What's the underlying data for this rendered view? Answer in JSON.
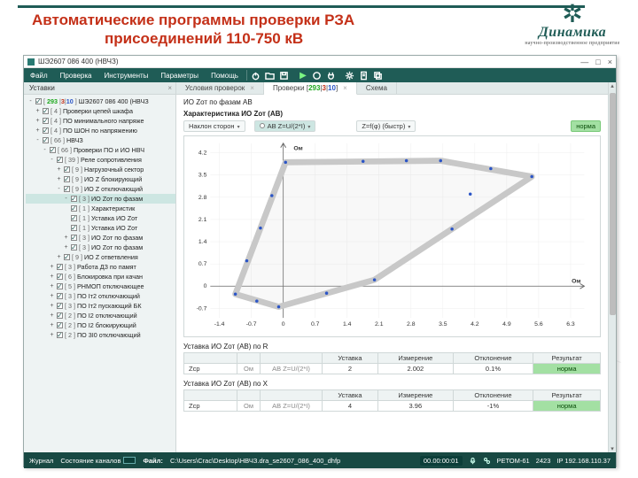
{
  "slide": {
    "title_line1": "Автоматические программы проверки РЗА",
    "title_line2": "присоединений 110-750 кВ",
    "logo_name": "Динамика",
    "logo_sub": "научно-производственное предприятие"
  },
  "window": {
    "title": "ШЭ2607 086 400 (НВЧЗ)",
    "min": "—",
    "max": "□",
    "close": "×",
    "menu": [
      "Файл",
      "Проверка",
      "Инструменты",
      "Параметры",
      "Помощь"
    ],
    "icons": [
      "power",
      "folder",
      "save",
      "play",
      "stop",
      "unplug",
      "gear",
      "report",
      "stack"
    ]
  },
  "sidebar_tab": "Уставки",
  "tree": [
    {
      "lvl": 1,
      "tw": "-",
      "cnt": "[ 293 | 3 | 10 ]",
      "label": "ШЭ2607 086 400 (НВЧЗ"
    },
    {
      "lvl": 2,
      "tw": "+",
      "cnt": "[ 4 ]",
      "label": "Проверки цепей шкафа"
    },
    {
      "lvl": 2,
      "tw": "+",
      "cnt": "[ 4 ]",
      "label": "ПО минимального напряже"
    },
    {
      "lvl": 2,
      "tw": "+",
      "cnt": "[ 4 ]",
      "label": "ПО ШОН по напряжению"
    },
    {
      "lvl": 2,
      "tw": "-",
      "cnt": "[ 66 ]",
      "label": "НВЧЗ"
    },
    {
      "lvl": 3,
      "tw": "-",
      "cnt": "[ 66 ]",
      "label": "Проверки ПО и ИО НВЧ"
    },
    {
      "lvl": 4,
      "tw": "-",
      "cnt": "[ 39 ]",
      "label": "Реле сопротивления"
    },
    {
      "lvl": 5,
      "tw": "+",
      "cnt": "[ 9 ]",
      "label": "Нагрузочный сектор"
    },
    {
      "lvl": 5,
      "tw": "+",
      "cnt": "[ 9 ]",
      "label": "ИО Z блокирующий"
    },
    {
      "lvl": 5,
      "tw": "-",
      "cnt": "[ 9 ]",
      "label": "ИО Z отключающий"
    },
    {
      "lvl": 6,
      "tw": "-",
      "cnt": "[ 3 ]",
      "label": "ИО Zот по фазам",
      "sel": true
    },
    {
      "lvl": 6,
      "tw": "",
      "cnt": "[ 1 ]",
      "label": "Характеристик"
    },
    {
      "lvl": 6,
      "tw": "",
      "cnt": "[ 1 ]",
      "label": "Уставка ИО Zот"
    },
    {
      "lvl": 6,
      "tw": "",
      "cnt": "[ 1 ]",
      "label": "Уставка ИО Zот"
    },
    {
      "lvl": 6,
      "tw": "+",
      "cnt": "[ 3 ]",
      "label": "ИО Zот по фазам"
    },
    {
      "lvl": 6,
      "tw": "+",
      "cnt": "[ 3 ]",
      "label": "ИО Zот по фазам"
    },
    {
      "lvl": 5,
      "tw": "+",
      "cnt": "[ 9 ]",
      "label": "ИО Z ответвления"
    },
    {
      "lvl": 4,
      "tw": "+",
      "cnt": "[ 3 ]",
      "label": "Работа ДЗ по памят"
    },
    {
      "lvl": 4,
      "tw": "+",
      "cnt": "[ 6 ]",
      "label": "Блокировка при качан"
    },
    {
      "lvl": 4,
      "tw": "+",
      "cnt": "[ 5 ]",
      "label": "РНМОП отключающее"
    },
    {
      "lvl": 4,
      "tw": "+",
      "cnt": "[ 3 ]",
      "label": "ПО Iт2 отключающий"
    },
    {
      "lvl": 4,
      "tw": "+",
      "cnt": "[ 3 ]",
      "label": "ПО Iт2 пускающий БК"
    },
    {
      "lvl": 4,
      "tw": "+",
      "cnt": "[ 2 ]",
      "label": "ПО I2 отключающий"
    },
    {
      "lvl": 4,
      "tw": "+",
      "cnt": "[ 2 ]",
      "label": "ПО I2 блокирующий"
    },
    {
      "lvl": 4,
      "tw": "+",
      "cnt": "[ 2 ]",
      "label": "ПО 3I0 отключающий"
    }
  ],
  "main_tabs": [
    {
      "label": "Условия проверок",
      "close": true
    },
    {
      "label": "Проверки [ 293 | 3 | 10 ]",
      "active": true,
      "close": true
    },
    {
      "label": "Схема"
    }
  ],
  "check_title": "ИО Zот по фазам АВ",
  "char_title": "Характеристика ИО Zот (АВ)",
  "option_pills": {
    "p1": "Наклон сторон",
    "p2": "АВ Z=U/(2*I)",
    "p3": "Z=f(φ) (быстр)",
    "norm": "норма"
  },
  "chart": {
    "x_unit": "Ом",
    "y_unit": "Ом",
    "x_ticks": [
      -1.4,
      -0.7,
      0,
      0.7,
      1.4,
      2.1,
      2.8,
      3.5,
      4.2,
      4.9,
      5.6,
      6.3
    ],
    "y_ticks": [
      -0.7,
      0,
      0.7,
      1.4,
      2.1,
      2.8,
      3.5,
      4.2
    ],
    "x_range": [
      -1.6,
      6.6
    ],
    "y_range": [
      -1.0,
      4.5
    ],
    "char_poly": [
      [
        -1.05,
        -0.25
      ],
      [
        -0.1,
        -0.65
      ],
      [
        2.0,
        0.2
      ],
      [
        5.45,
        3.45
      ],
      [
        3.45,
        3.95
      ],
      [
        0.05,
        3.9
      ],
      [
        -1.05,
        -0.25
      ]
    ],
    "char_stroke_width": 7,
    "points": [
      [
        -1.05,
        -0.25
      ],
      [
        -0.1,
        -0.65
      ],
      [
        2.0,
        0.2
      ],
      [
        5.45,
        3.45
      ],
      [
        3.45,
        3.95
      ],
      [
        0.05,
        3.9
      ],
      [
        -0.58,
        -0.47
      ],
      [
        0.95,
        -0.22
      ],
      [
        3.7,
        1.8
      ],
      [
        4.55,
        3.7
      ],
      [
        1.75,
        3.93
      ],
      [
        -0.5,
        1.83
      ],
      [
        -0.8,
        0.8
      ],
      [
        -0.25,
        2.85
      ],
      [
        4.1,
        2.9
      ],
      [
        2.7,
        3.95
      ]
    ],
    "point_color": "#2b55c6",
    "grid_color": "#eeeeee",
    "axis_color": "#666666",
    "bg": "#ffffff",
    "char_color": "#c8c8c8",
    "char_fill": "rgba(200,200,200,0.10)"
  },
  "table1": {
    "caption": "Уставка ИО Zот (АВ) по R",
    "cols": [
      "",
      "",
      "",
      "Уставка",
      "Измерение",
      "Отклонение",
      "Результат"
    ],
    "row": {
      "name": "Zср",
      "unit": "Ом",
      "mode": "АВ Z=U/(2*I)",
      "set": "2",
      "meas": "2.002",
      "dev": "0.1%",
      "res": "норма"
    }
  },
  "table2": {
    "caption": "Уставка ИО Zот (АВ) по X",
    "row": {
      "name": "Zср",
      "unit": "Ом",
      "mode": "АВ Z=U/(2*I)",
      "set": "4",
      "meas": "3.96",
      "dev": "-1%",
      "res": "норма"
    }
  },
  "status": {
    "journal": "Журнал",
    "channels": "Состояние каналов",
    "file_lbl": "Файл:",
    "file_path": "C:\\Users\\Crac\\Desktop\\НВЧЗ.dra_se2607_086_400_dhfp",
    "timer": "00.00:00:01",
    "device": "РЕТОМ-61",
    "port": "2423",
    "ip": "IP 192.168.110.37"
  }
}
